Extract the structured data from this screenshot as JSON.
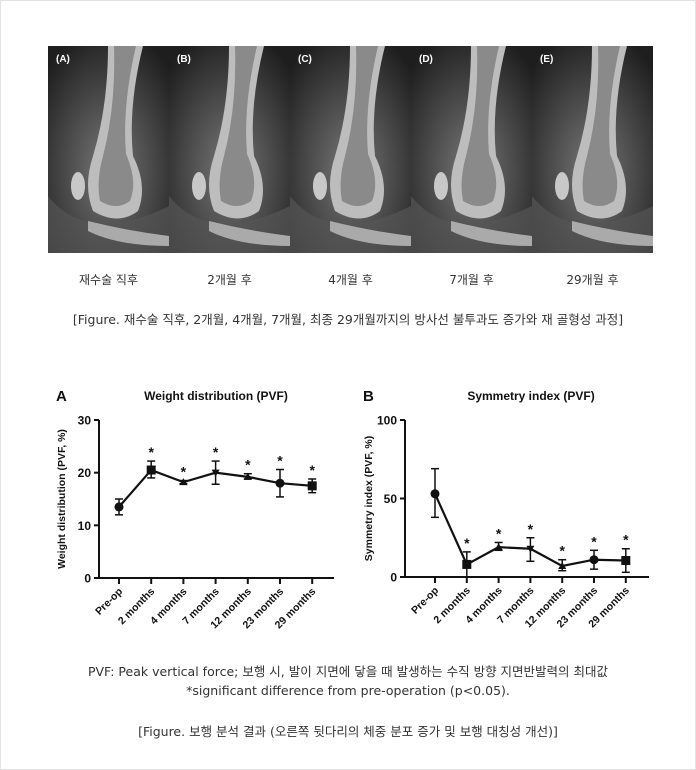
{
  "xray_panels": [
    {
      "label": "(A)",
      "caption": "재수술 직후"
    },
    {
      "label": "(B)",
      "caption": "2개월 후"
    },
    {
      "label": "(C)",
      "caption": "4개월 후"
    },
    {
      "label": "(D)",
      "caption": "7개월 후"
    },
    {
      "label": "(E)",
      "caption": "29개월 후"
    }
  ],
  "figure1_caption": "[Figure. 재수술 직후, 2개월, 4개월, 7개월, 최종 29개월까지의 방사선 불투과도 증가와 재 골형성 과정]",
  "chart_data": [
    {
      "type": "line",
      "panel": "A",
      "title": "Weight distribution (PVF)",
      "xlabel": "",
      "ylabel": "Weight distribution (PVF, %)",
      "categories": [
        "Pre-op",
        "2 months",
        "4 months",
        "7 months",
        "12 months",
        "23 months",
        "29 months"
      ],
      "values": [
        13.5,
        20.5,
        18.2,
        20.0,
        19.2,
        18.0,
        17.5
      ],
      "error_low": [
        12.0,
        19.0,
        17.9,
        17.8,
        18.8,
        15.4,
        16.2
      ],
      "error_high": [
        15.0,
        22.2,
        18.5,
        22.2,
        19.8,
        20.6,
        18.8
      ],
      "significant": [
        false,
        true,
        true,
        true,
        true,
        true,
        true
      ],
      "significance_mark": "*",
      "ylim": [
        0,
        30
      ],
      "yticks": [
        "0",
        "10",
        "20",
        "30"
      ],
      "ytick_values": [
        0,
        10,
        20,
        30
      ]
    },
    {
      "type": "line",
      "panel": "B",
      "title": "Symmetry index (PVF)",
      "xlabel": "",
      "ylabel": "Symmetry index (PVF, %)",
      "categories": [
        "Pre-op",
        "2 months",
        "4 months",
        "7 months",
        "12 months",
        "23 months",
        "29 months"
      ],
      "values": [
        53,
        8,
        19,
        18,
        7,
        11,
        10.5
      ],
      "error_low": [
        38,
        0,
        17,
        10,
        4,
        5,
        3
      ],
      "error_high": [
        69,
        16,
        22,
        25,
        11,
        17,
        18
      ],
      "significant": [
        false,
        true,
        true,
        true,
        true,
        true,
        true
      ],
      "significance_mark": "*",
      "ylim": [
        0,
        100
      ],
      "yticks": [
        "0",
        "50",
        "100"
      ],
      "ytick_values": [
        0,
        50,
        100
      ]
    }
  ],
  "notes": {
    "pvf_definition": "PVF: Peak vertical force; 보행 시, 발이 지면에 닿을 때 발생하는 수직 방향 지면반발력의 최대값",
    "significance": "*significant difference from pre‐operation (p<0.05).",
    "figure2_caption": "[Figure. 보행 분석 결과 (오른쪽 뒷다리의 체중 분포 증가 및 보행 대칭성 개선)]"
  }
}
